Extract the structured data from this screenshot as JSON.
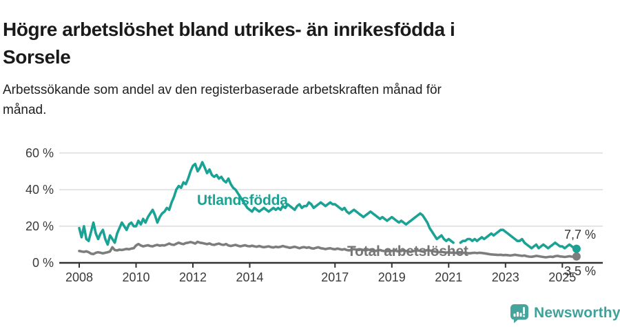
{
  "header": {
    "title_lines": [
      "Högre arbetslöshet bland utrikes- än inrikesfödda i",
      "Sorsele"
    ],
    "subtitle_lines": [
      "Arbetssökande som andel av den registerbaserade arbetskraften månad för",
      "månad."
    ]
  },
  "chart_data": {
    "type": "line",
    "title": "Högre arbetslöshet bland utrikes- än inrikesfödda i Sorsele",
    "subtitle": "Arbetssökande som andel av den registerbaserade arbetskraften månad för månad.",
    "unit": "%",
    "grid": true,
    "legend_position": "inline-labels",
    "x_start_year": 2008,
    "x_step_months": 1,
    "xlim": [
      2007.3,
      2026.4
    ],
    "ylim": [
      0,
      63
    ],
    "y_gridlines": [
      0,
      20,
      40,
      60
    ],
    "y_tick_labels": [
      "0 %",
      "20 %",
      "40 %",
      "60 %"
    ],
    "x_ticks": [
      2008,
      2010,
      2012,
      2014,
      2017,
      2019,
      2021,
      2023,
      2025
    ],
    "x_tick_labels": [
      "2008",
      "2010",
      "2012",
      "2014",
      "2017",
      "2019",
      "2021",
      "2023",
      "2025"
    ],
    "grid_color": "#dcdcdc",
    "axis_color": "#333333",
    "series": [
      {
        "id": "utlandsfodda",
        "name": "Utlandsfödda",
        "color": "#1aa294",
        "end_label": "7,7 %",
        "end_value": 7.7,
        "values": [
          19,
          14,
          20,
          13,
          12,
          17,
          22,
          16,
          13,
          16,
          18,
          13,
          10,
          15,
          13,
          11,
          16,
          19,
          22,
          20,
          18,
          21,
          22,
          20,
          20,
          23,
          21,
          24,
          22,
          25,
          27,
          29,
          26,
          22,
          25,
          27,
          28,
          30,
          29,
          33,
          36,
          40,
          42,
          41,
          44,
          43,
          46,
          50,
          53,
          54,
          50,
          52,
          55,
          52,
          49,
          51,
          48,
          47,
          48,
          46,
          47,
          45,
          44,
          46,
          43,
          41,
          40,
          38,
          36,
          34,
          32,
          30,
          29,
          28,
          30,
          29,
          28,
          29,
          30,
          29,
          28,
          29,
          30,
          29,
          30,
          29,
          31,
          30,
          32,
          31,
          30,
          29,
          31,
          32,
          30,
          31,
          31,
          33,
          32,
          30,
          31,
          32,
          33,
          32,
          31,
          32,
          33,
          32,
          32,
          31,
          30,
          29,
          30,
          28,
          27,
          28,
          29,
          28,
          27,
          26,
          25,
          26,
          27,
          28,
          27,
          26,
          25,
          24,
          25,
          24,
          23,
          24,
          25,
          24,
          23,
          22,
          23,
          22,
          21,
          22,
          23,
          24,
          25,
          26,
          27,
          26,
          24,
          22,
          19,
          17,
          15,
          13,
          14,
          15,
          13,
          12,
          13,
          12,
          11,
          null,
          null,
          11,
          12,
          12,
          13,
          13,
          12,
          13,
          12,
          13,
          14,
          13,
          14,
          15,
          16,
          15,
          16,
          17,
          18,
          18,
          17,
          16,
          15,
          14,
          13,
          12,
          12,
          13,
          11,
          10,
          9,
          8,
          9,
          10,
          8,
          9,
          10,
          9,
          8,
          9,
          10,
          11,
          10,
          9,
          9,
          8,
          9,
          10,
          9,
          8,
          7.7
        ]
      },
      {
        "id": "total",
        "name": "Total arbetslöshet",
        "color": "#7d7d7d",
        "end_label": "3,5 %",
        "end_value": 3.5,
        "values": [
          6.5,
          6.2,
          6.0,
          6.3,
          5.8,
          5.0,
          4.8,
          5.5,
          5.8,
          5.5,
          5.2,
          5.5,
          5.8,
          6.2,
          8.5,
          7.0,
          6.8,
          7.2,
          7.0,
          7.3,
          7.6,
          7.4,
          7.8,
          8.0,
          9.5,
          10.3,
          9.5,
          9.0,
          9.3,
          9.6,
          9.2,
          9.0,
          9.5,
          9.8,
          9.4,
          9.6,
          9.5,
          10.0,
          10.5,
          10.0,
          9.8,
          10.4,
          11.0,
          10.5,
          10.2,
          10.8,
          11.0,
          11.4,
          11.0,
          10.5,
          11.5,
          11.0,
          10.8,
          10.5,
          10.2,
          10.6,
          10.0,
          9.8,
          10.2,
          10.5,
          10.0,
          9.8,
          10.3,
          9.5,
          9.2,
          9.5,
          9.8,
          9.4,
          9.0,
          9.3,
          9.6,
          9.2,
          9.0,
          9.4,
          9.0,
          8.8,
          9.2,
          8.8,
          8.5,
          8.8,
          9.0,
          8.6,
          8.4,
          8.8,
          8.5,
          8.8,
          9.2,
          8.8,
          8.5,
          8.2,
          8.5,
          8.8,
          8.4,
          8.0,
          8.4,
          8.6,
          8.2,
          8.5,
          8.0,
          7.8,
          8.2,
          8.5,
          8.0,
          7.8,
          7.5,
          7.8,
          8.0,
          7.6,
          7.4,
          7.8,
          7.5,
          7.2,
          7.5,
          7.0,
          6.8,
          7.2,
          7.5,
          7.2,
          7.0,
          7.3,
          7.0,
          6.8,
          7.2,
          7.0,
          6.8,
          6.5,
          6.8,
          7.0,
          6.6,
          6.4,
          6.8,
          6.6,
          6.5,
          6.8,
          6.5,
          6.2,
          6.5,
          6.8,
          6.5,
          6.2,
          6.0,
          6.4,
          6.6,
          6.8,
          6.5,
          6.2,
          6.5,
          7.0,
          6.8,
          6.5,
          6.2,
          6.0,
          5.8,
          6.0,
          5.8,
          5.6,
          5.8,
          5.5,
          5.6,
          5.4,
          5.5,
          5.3,
          5.4,
          5.5,
          5.3,
          5.2,
          5.4,
          5.5,
          5.3,
          5.5,
          5.4,
          5.2,
          5.0,
          4.8,
          4.6,
          4.5,
          4.4,
          4.3,
          4.4,
          4.2,
          4.3,
          4.2,
          4.0,
          4.2,
          4.4,
          4.2,
          4.0,
          3.8,
          4.0,
          3.6,
          3.4,
          3.3,
          3.5,
          3.8,
          3.6,
          3.4,
          3.2,
          3.0,
          3.2,
          3.4,
          3.2,
          3.6,
          3.8,
          3.5,
          3.4,
          3.2,
          3.4,
          3.6,
          3.4,
          3.3,
          3.5
        ]
      }
    ]
  },
  "footer": {
    "brand": "Newsworthy"
  },
  "colors": {
    "teal": "#1aa294",
    "gray": "#7d7d7d",
    "axis": "#333333",
    "grid": "#dcdcdc",
    "logo_teal": "#45a49c",
    "background": "#ffffff"
  }
}
